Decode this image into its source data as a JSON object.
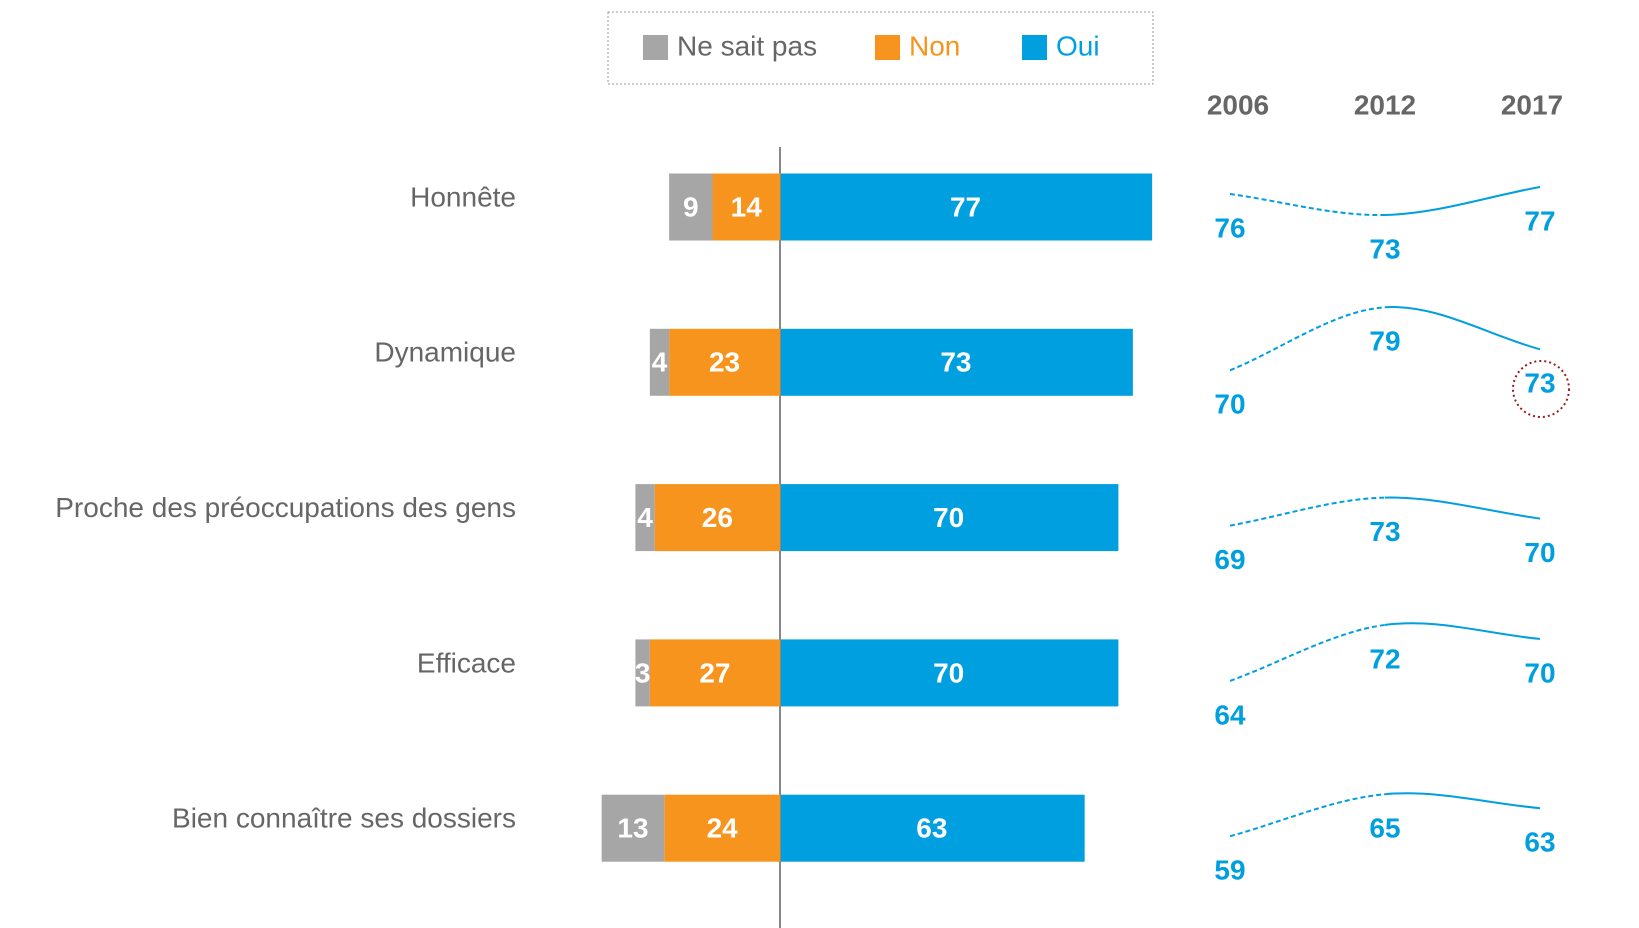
{
  "chart_data": [
    {
      "type": "bar",
      "categories": [
        "Honnête",
        "Dynamique",
        "Proche des préoccupations des gens",
        "Efficace",
        "Bien connaître ses dossiers"
      ],
      "series": [
        {
          "name": "Ne sait pas",
          "color": "#a6a6a6",
          "values": [
            9,
            4,
            4,
            3,
            13
          ]
        },
        {
          "name": "Non",
          "color": "#f7941d",
          "values": [
            14,
            23,
            26,
            27,
            24
          ]
        },
        {
          "name": "Oui",
          "color": "#009fdf",
          "values": [
            77,
            73,
            70,
            70,
            63
          ]
        }
      ]
    },
    {
      "type": "line",
      "x": [
        "2006",
        "2012",
        "2017"
      ],
      "series": [
        {
          "color": "#009fdf",
          "values": [
            76,
            73,
            77
          ]
        },
        {
          "color": "#009fdf",
          "values": [
            70,
            79,
            73
          ]
        },
        {
          "color": "#009fdf",
          "values": [
            69,
            73,
            70
          ]
        },
        {
          "color": "#009fdf",
          "values": [
            64,
            72,
            70
          ]
        },
        {
          "color": "#009fdf",
          "values": [
            59,
            65,
            63
          ]
        }
      ]
    }
  ]
}
